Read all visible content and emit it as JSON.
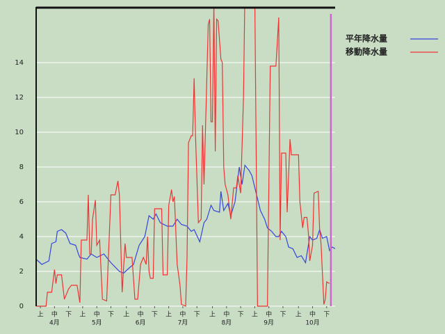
{
  "chart_data": {
    "type": "line",
    "legend": "right",
    "grid": true,
    "xlim": [
      0,
      212
    ],
    "ylim": [
      0,
      17.2
    ],
    "yticks": [
      0,
      2,
      4,
      6,
      8,
      10,
      12,
      14
    ],
    "xticks": [
      {
        "value": 3,
        "label": "上"
      },
      {
        "value": 13,
        "label": "中"
      },
      {
        "value": 23,
        "label": "下"
      },
      {
        "value": 33,
        "label": "上"
      },
      {
        "value": 43,
        "label": "中"
      },
      {
        "value": 53,
        "label": "下"
      },
      {
        "value": 64,
        "label": "上"
      },
      {
        "value": 74,
        "label": "中"
      },
      {
        "value": 84,
        "label": "下"
      },
      {
        "value": 94,
        "label": "上"
      },
      {
        "value": 104,
        "label": "中"
      },
      {
        "value": 114,
        "label": "下"
      },
      {
        "value": 125,
        "label": "上"
      },
      {
        "value": 135,
        "label": "中"
      },
      {
        "value": 145,
        "label": "下"
      },
      {
        "value": 155,
        "label": "上"
      },
      {
        "value": 165,
        "label": "中"
      },
      {
        "value": 175,
        "label": "下"
      },
      {
        "value": 186,
        "label": "上"
      },
      {
        "value": 196,
        "label": "中"
      },
      {
        "value": 206,
        "label": "下"
      }
    ],
    "month_labels": [
      {
        "value": 13,
        "label": "4月"
      },
      {
        "value": 43,
        "label": "5月"
      },
      {
        "value": 74,
        "label": "6月"
      },
      {
        "value": 104,
        "label": "7月"
      },
      {
        "value": 135,
        "label": "8月"
      },
      {
        "value": 165,
        "label": "9月"
      },
      {
        "value": 196,
        "label": "10月"
      }
    ],
    "marker_x": 209,
    "marker_color": "#cc66cc",
    "series": [
      {
        "name": "平年降水量",
        "color": "#3344dd",
        "x": [
          0,
          4,
          9,
          11,
          14,
          15,
          18,
          21,
          24,
          28,
          30,
          31,
          36,
          39,
          43,
          48,
          53,
          59,
          62,
          66,
          69,
          73,
          77,
          80,
          83,
          85,
          88,
          93,
          97,
          100,
          103,
          107,
          110,
          112,
          116,
          119,
          121,
          124,
          126,
          130,
          131,
          133,
          136,
          138,
          141,
          144,
          146,
          148,
          151,
          153,
          156,
          159,
          162,
          164,
          167,
          170,
          172,
          174,
          177,
          179,
          182,
          185,
          188,
          191,
          194,
          196,
          199,
          201,
          203,
          206,
          208,
          210,
          212
        ],
        "values": [
          2.7,
          2.4,
          2.6,
          3.6,
          3.7,
          4.3,
          4.4,
          4.2,
          3.6,
          3.5,
          3.0,
          2.8,
          2.7,
          3.0,
          2.8,
          3.0,
          2.5,
          2.0,
          1.9,
          2.2,
          2.4,
          3.5,
          4.0,
          5.2,
          5.0,
          5.3,
          4.8,
          4.6,
          4.6,
          5.0,
          4.7,
          4.6,
          4.3,
          4.4,
          3.7,
          4.8,
          5.0,
          5.8,
          5.5,
          5.4,
          6.6,
          5.5,
          5.9,
          5.2,
          6.0,
          8.0,
          7.0,
          8.1,
          7.8,
          7.5,
          6.5,
          5.5,
          5.0,
          4.5,
          4.3,
          4.0,
          4.0,
          4.3,
          4.0,
          3.4,
          3.3,
          2.8,
          2.9,
          2.5,
          4.0,
          3.8,
          3.9,
          4.4,
          3.9,
          4.0,
          3.2,
          3.4,
          3.3
        ]
      },
      {
        "name": "移動降水量",
        "color": "#ee3333",
        "x": [
          0,
          7,
          8,
          11,
          13,
          14,
          15,
          18,
          20,
          23,
          25,
          29,
          31,
          32,
          36,
          37,
          38,
          39,
          40,
          42,
          43,
          45,
          47,
          50,
          53,
          56,
          58,
          59,
          61,
          63,
          64,
          68,
          70,
          72,
          74,
          76,
          78,
          79,
          80,
          81,
          83,
          84,
          89,
          90,
          93,
          94,
          96,
          97,
          98,
          100,
          102,
          103,
          106,
          107,
          108,
          110,
          111,
          112,
          113,
          115,
          117,
          118,
          119,
          120,
          122,
          123,
          124,
          125,
          126,
          127,
          128,
          129,
          131,
          132,
          133,
          134,
          136,
          138,
          140,
          142,
          143,
          145,
          147,
          148,
          155,
          157,
          164,
          166,
          170,
          172,
          173,
          174,
          177,
          178,
          180,
          181,
          186,
          187,
          189,
          190,
          192,
          193,
          194,
          196,
          197,
          200,
          201,
          202,
          204,
          205,
          206,
          208
        ],
        "values": [
          0,
          0,
          0.8,
          0.8,
          2.1,
          1.3,
          1.8,
          1.8,
          0.4,
          1.0,
          1.2,
          1.2,
          0.2,
          3.8,
          3.8,
          6.4,
          3.0,
          3.0,
          5.0,
          6.1,
          3.5,
          3.8,
          0.4,
          0.3,
          6.4,
          6.4,
          7.2,
          6.4,
          0.8,
          3.6,
          2.8,
          2.8,
          0.4,
          0.4,
          2.4,
          2.8,
          2.4,
          4.0,
          2.0,
          1.6,
          1.6,
          5.6,
          5.6,
          1.8,
          1.8,
          5.8,
          6.7,
          6.0,
          6.3,
          2.4,
          1.2,
          0.1,
          0,
          2.8,
          9.4,
          9.8,
          9.8,
          13.1,
          9.8,
          4.8,
          5.0,
          10.4,
          7.0,
          10.0,
          16.2,
          16.5,
          10.6,
          10.6,
          17.4,
          8.9,
          16.5,
          16.4,
          14.2,
          14.0,
          8.0,
          7.0,
          6.4,
          5.0,
          6.8,
          6.8,
          7.5,
          6.5,
          12.0,
          18.0,
          18.0,
          0,
          0,
          13.8,
          13.8,
          16.6,
          3.8,
          8.8,
          8.8,
          5.4,
          9.6,
          8.7,
          8.7,
          6.0,
          4.5,
          5.1,
          5.1,
          4.2,
          2.6,
          3.5,
          6.5,
          6.6,
          4.4,
          3.6,
          0.1,
          0.4,
          1.4,
          1.3
        ]
      }
    ]
  }
}
